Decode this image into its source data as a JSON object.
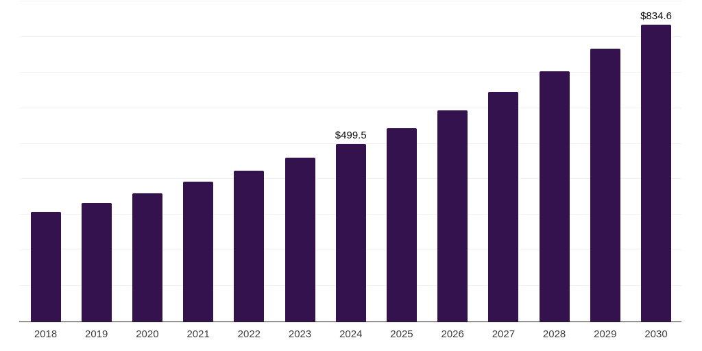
{
  "chart_data": {
    "type": "bar",
    "title": "",
    "xlabel": "",
    "ylabel": "",
    "categories": [
      "2018",
      "2019",
      "2020",
      "2021",
      "2022",
      "2023",
      "2024",
      "2025",
      "2026",
      "2027",
      "2028",
      "2029",
      "2030"
    ],
    "values": [
      309.0,
      334.0,
      361.0,
      392.3,
      424.2,
      461.0,
      499.5,
      544.2,
      592.8,
      645.8,
      703.5,
      766.4,
      834.6
    ],
    "value_labels": [
      "",
      "",
      "",
      "",
      "",
      "",
      "$499.5",
      "",
      "",
      "",
      "",
      "",
      "$834.6"
    ],
    "ylim": [
      0,
      900
    ],
    "gridline_step": 100,
    "grid": "horizontal",
    "y_tick_labels": "none",
    "legend": "none",
    "bar_color": "#33124e",
    "gridline_color": "#f1f1f1",
    "axis_line_color": "#1f1f1f",
    "value_label_color": "#0d0d0d",
    "x_tick_label_color": "#3d3d3d"
  }
}
